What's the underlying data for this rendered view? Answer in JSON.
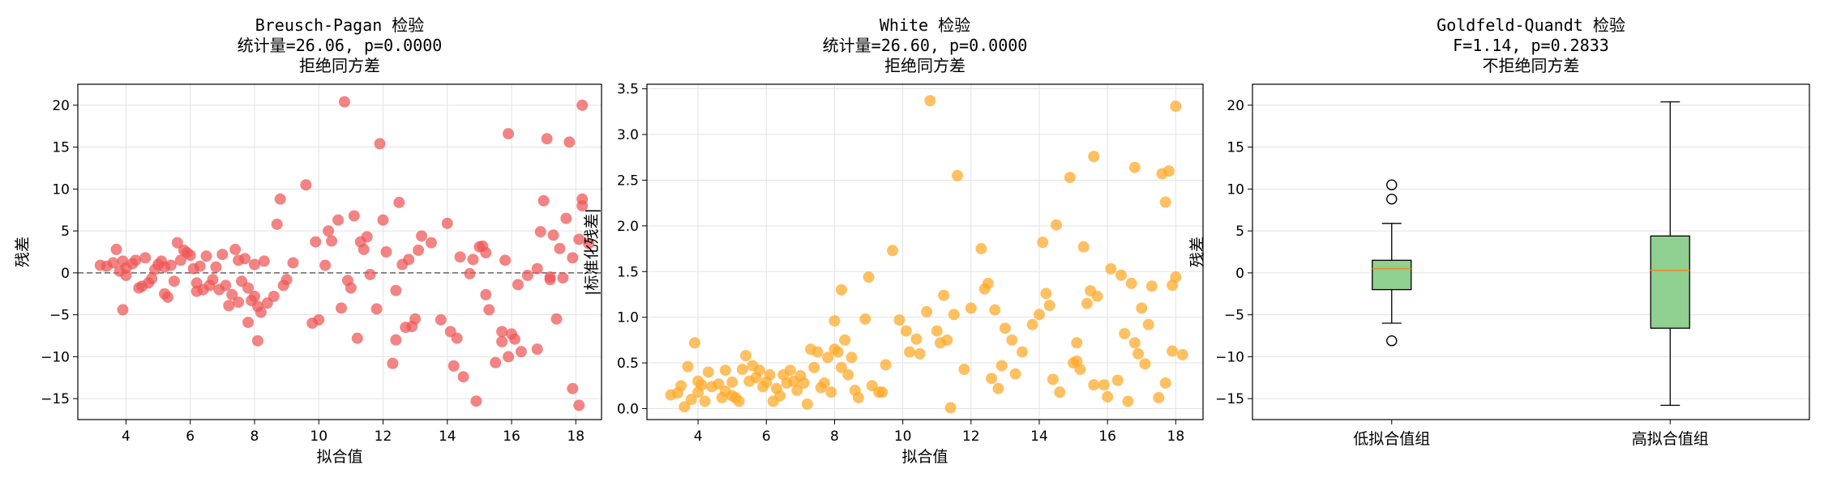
{
  "chart_data": [
    {
      "type": "scatter",
      "title_lines": [
        "Breusch-Pagan 检验",
        "统计量=26.06, p=0.0000",
        "拒绝同方差"
      ],
      "xlabel": "拟合值",
      "ylabel": "残差",
      "xlim": [
        2.5,
        18.8
      ],
      "ylim": [
        -17.5,
        22.5
      ],
      "xticks": [
        4,
        6,
        8,
        10,
        12,
        14,
        16,
        18
      ],
      "yticks": [
        -15,
        -10,
        -5,
        0,
        5,
        10,
        15,
        20
      ],
      "grid": true,
      "reference_line": 0,
      "color": "#ee5555",
      "points": [
        [
          3.2,
          0.9
        ],
        [
          3.4,
          0.8
        ],
        [
          3.6,
          1.2
        ],
        [
          3.7,
          2.8
        ],
        [
          3.8,
          0.2
        ],
        [
          3.9,
          1.4
        ],
        [
          4.0,
          0.6
        ],
        [
          4.0,
          -0.3
        ],
        [
          3.9,
          -4.4
        ],
        [
          4.2,
          1.1
        ],
        [
          4.3,
          1.5
        ],
        [
          4.4,
          -1.8
        ],
        [
          4.5,
          -1.6
        ],
        [
          4.6,
          1.8
        ],
        [
          4.7,
          -1.2
        ],
        [
          4.8,
          -0.7
        ],
        [
          4.9,
          0.4
        ],
        [
          5.0,
          1.0
        ],
        [
          5.1,
          1.4
        ],
        [
          5.2,
          0.7
        ],
        [
          5.2,
          -2.5
        ],
        [
          5.3,
          -2.9
        ],
        [
          5.4,
          0.9
        ],
        [
          5.5,
          -1.0
        ],
        [
          5.6,
          3.6
        ],
        [
          5.7,
          1.5
        ],
        [
          5.8,
          2.7
        ],
        [
          5.9,
          2.4
        ],
        [
          6.0,
          2.1
        ],
        [
          6.1,
          0.5
        ],
        [
          6.2,
          -1.2
        ],
        [
          6.2,
          -2.2
        ],
        [
          6.3,
          0.8
        ],
        [
          6.4,
          -2.0
        ],
        [
          6.5,
          2.0
        ],
        [
          6.6,
          -1.5
        ],
        [
          6.7,
          -0.8
        ],
        [
          6.8,
          0.7
        ],
        [
          6.9,
          -2.0
        ],
        [
          7.0,
          2.2
        ],
        [
          7.1,
          -1.5
        ],
        [
          7.2,
          -3.9
        ],
        [
          7.3,
          -2.6
        ],
        [
          7.4,
          2.8
        ],
        [
          7.5,
          -3.5
        ],
        [
          7.5,
          1.5
        ],
        [
          7.6,
          -1.0
        ],
        [
          7.7,
          1.7
        ],
        [
          7.8,
          -5.9
        ],
        [
          7.8,
          -1.8
        ],
        [
          7.9,
          -3.3
        ],
        [
          8.0,
          -2.8
        ],
        [
          8.0,
          1.0
        ],
        [
          8.1,
          -4.0
        ],
        [
          8.1,
          -8.1
        ],
        [
          8.2,
          -4.7
        ],
        [
          8.3,
          1.4
        ],
        [
          8.4,
          -3.6
        ],
        [
          8.6,
          -2.8
        ],
        [
          8.7,
          5.8
        ],
        [
          8.8,
          8.8
        ],
        [
          8.9,
          -1.5
        ],
        [
          9.0,
          -0.8
        ],
        [
          9.2,
          1.2
        ],
        [
          9.6,
          10.5
        ],
        [
          9.8,
          -6.0
        ],
        [
          9.9,
          3.7
        ],
        [
          10.0,
          -5.6
        ],
        [
          10.2,
          0.9
        ],
        [
          10.3,
          5.0
        ],
        [
          10.4,
          3.8
        ],
        [
          10.6,
          6.3
        ],
        [
          10.7,
          -4.2
        ],
        [
          10.8,
          20.4
        ],
        [
          10.9,
          -0.9
        ],
        [
          11.0,
          -1.8
        ],
        [
          11.1,
          6.8
        ],
        [
          11.2,
          -7.8
        ],
        [
          11.3,
          3.7
        ],
        [
          11.4,
          2.8
        ],
        [
          11.5,
          4.3
        ],
        [
          11.6,
          -0.2
        ],
        [
          11.8,
          -4.3
        ],
        [
          11.9,
          15.4
        ],
        [
          12.0,
          6.3
        ],
        [
          12.1,
          2.5
        ],
        [
          12.3,
          -10.8
        ],
        [
          12.4,
          -2.1
        ],
        [
          12.4,
          -8.0
        ],
        [
          12.5,
          8.4
        ],
        [
          12.6,
          1.0
        ],
        [
          12.7,
          -6.5
        ],
        [
          12.8,
          1.6
        ],
        [
          12.9,
          -6.4
        ],
        [
          13.0,
          -5.5
        ],
        [
          13.1,
          2.7
        ],
        [
          13.2,
          4.4
        ],
        [
          13.5,
          3.6
        ],
        [
          13.8,
          -5.6
        ],
        [
          14.0,
          5.9
        ],
        [
          14.1,
          -7.0
        ],
        [
          14.2,
          -11.1
        ],
        [
          14.3,
          -7.8
        ],
        [
          14.4,
          1.9
        ],
        [
          14.5,
          -12.4
        ],
        [
          14.7,
          -0.1
        ],
        [
          14.9,
          -15.3
        ],
        [
          15.0,
          3.1
        ],
        [
          15.1,
          3.2
        ],
        [
          15.2,
          -2.6
        ],
        [
          15.2,
          2.4
        ],
        [
          15.3,
          -4.4
        ],
        [
          15.5,
          -10.7
        ],
        [
          15.7,
          -7.0
        ],
        [
          15.7,
          -8.2
        ],
        [
          15.8,
          1.5
        ],
        [
          15.9,
          16.6
        ],
        [
          15.9,
          -10.0
        ],
        [
          16.0,
          -7.3
        ],
        [
          16.1,
          -7.9
        ],
        [
          16.2,
          -1.4
        ],
        [
          16.3,
          -9.4
        ],
        [
          16.5,
          -0.3
        ],
        [
          16.8,
          -9.1
        ],
        [
          16.8,
          0.5
        ],
        [
          16.9,
          4.9
        ],
        [
          17.0,
          8.6
        ],
        [
          17.1,
          16.0
        ],
        [
          17.2,
          -0.8
        ],
        [
          17.3,
          4.5
        ],
        [
          17.4,
          -5.5
        ],
        [
          17.5,
          2.9
        ],
        [
          17.6,
          -0.6
        ],
        [
          17.7,
          6.5
        ],
        [
          17.8,
          15.6
        ],
        [
          17.9,
          -13.8
        ],
        [
          17.9,
          1.8
        ],
        [
          18.1,
          4.0
        ],
        [
          18.1,
          -15.8
        ],
        [
          18.2,
          20.0
        ],
        [
          18.2,
          8.8
        ],
        [
          18.2,
          8.0
        ],
        [
          18.4,
          3.5
        ],
        [
          17.2,
          -0.5
        ],
        [
          14.8,
          1.6
        ]
      ]
    },
    {
      "type": "scatter",
      "title_lines": [
        "White 检验",
        "统计量=26.60, p=0.0000",
        "拒绝同方差"
      ],
      "xlabel": "拟合值",
      "ylabel": "|标准化残差|",
      "xlim": [
        2.5,
        18.8
      ],
      "ylim": [
        -0.12,
        3.55
      ],
      "xticks": [
        4,
        6,
        8,
        10,
        12,
        14,
        16,
        18
      ],
      "yticks": [
        0.0,
        0.5,
        1.0,
        1.5,
        2.0,
        2.5,
        3.0,
        3.5
      ],
      "grid": true,
      "color": "#ffa726",
      "points": [
        [
          3.2,
          0.15
        ],
        [
          3.4,
          0.17
        ],
        [
          3.5,
          0.25
        ],
        [
          3.6,
          0.02
        ],
        [
          3.7,
          0.46
        ],
        [
          3.8,
          0.1
        ],
        [
          3.9,
          0.72
        ],
        [
          4.0,
          0.18
        ],
        [
          4.0,
          0.3
        ],
        [
          4.1,
          0.26
        ],
        [
          4.2,
          0.08
        ],
        [
          4.3,
          0.4
        ],
        [
          4.4,
          0.24
        ],
        [
          4.6,
          0.27
        ],
        [
          4.7,
          0.12
        ],
        [
          4.8,
          0.19
        ],
        [
          4.8,
          0.42
        ],
        [
          5.0,
          0.14
        ],
        [
          5.0,
          0.29
        ],
        [
          5.1,
          0.12
        ],
        [
          5.2,
          0.08
        ],
        [
          5.3,
          0.43
        ],
        [
          5.4,
          0.58
        ],
        [
          5.5,
          0.3
        ],
        [
          5.6,
          0.47
        ],
        [
          5.7,
          0.34
        ],
        [
          5.8,
          0.42
        ],
        [
          5.9,
          0.24
        ],
        [
          6.0,
          0.29
        ],
        [
          6.1,
          0.37
        ],
        [
          6.2,
          0.08
        ],
        [
          6.3,
          0.22
        ],
        [
          6.4,
          0.14
        ],
        [
          6.5,
          0.37
        ],
        [
          6.6,
          0.28
        ],
        [
          6.7,
          0.42
        ],
        [
          6.8,
          0.3
        ],
        [
          6.9,
          0.2
        ],
        [
          7.0,
          0.36
        ],
        [
          7.1,
          0.28
        ],
        [
          7.2,
          0.05
        ],
        [
          7.3,
          0.65
        ],
        [
          7.4,
          0.45
        ],
        [
          7.5,
          0.62
        ],
        [
          7.6,
          0.23
        ],
        [
          7.7,
          0.28
        ],
        [
          7.8,
          0.56
        ],
        [
          7.9,
          0.18
        ],
        [
          8.0,
          0.96
        ],
        [
          8.0,
          0.65
        ],
        [
          8.1,
          0.62
        ],
        [
          8.2,
          1.3
        ],
        [
          8.2,
          0.45
        ],
        [
          8.3,
          0.75
        ],
        [
          8.4,
          0.37
        ],
        [
          8.5,
          0.56
        ],
        [
          8.6,
          0.2
        ],
        [
          8.7,
          0.12
        ],
        [
          8.9,
          0.98
        ],
        [
          9.0,
          1.44
        ],
        [
          9.1,
          0.25
        ],
        [
          9.3,
          0.18
        ],
        [
          9.4,
          0.18
        ],
        [
          9.5,
          0.48
        ],
        [
          9.7,
          1.73
        ],
        [
          9.9,
          0.97
        ],
        [
          10.1,
          0.85
        ],
        [
          10.2,
          0.62
        ],
        [
          10.4,
          0.76
        ],
        [
          10.5,
          0.6
        ],
        [
          10.7,
          1.06
        ],
        [
          10.8,
          3.37
        ],
        [
          11.0,
          0.85
        ],
        [
          11.1,
          0.72
        ],
        [
          11.2,
          1.24
        ],
        [
          11.3,
          0.75
        ],
        [
          11.4,
          0.01
        ],
        [
          11.5,
          1.03
        ],
        [
          11.6,
          2.55
        ],
        [
          11.8,
          0.43
        ],
        [
          12.0,
          1.1
        ],
        [
          12.3,
          1.75
        ],
        [
          12.4,
          1.31
        ],
        [
          12.5,
          1.37
        ],
        [
          12.6,
          0.33
        ],
        [
          12.7,
          1.08
        ],
        [
          12.8,
          0.22
        ],
        [
          12.9,
          0.47
        ],
        [
          13.0,
          0.88
        ],
        [
          13.2,
          0.75
        ],
        [
          13.3,
          0.38
        ],
        [
          13.5,
          0.62
        ],
        [
          13.8,
          0.92
        ],
        [
          14.0,
          1.03
        ],
        [
          14.1,
          1.82
        ],
        [
          14.2,
          1.26
        ],
        [
          14.3,
          1.13
        ],
        [
          14.4,
          0.32
        ],
        [
          14.5,
          2.01
        ],
        [
          14.6,
          0.18
        ],
        [
          14.9,
          2.53
        ],
        [
          15.0,
          0.5
        ],
        [
          15.1,
          0.72
        ],
        [
          15.1,
          0.52
        ],
        [
          15.2,
          0.43
        ],
        [
          15.3,
          1.77
        ],
        [
          15.4,
          1.15
        ],
        [
          15.5,
          1.29
        ],
        [
          15.6,
          2.76
        ],
        [
          15.6,
          0.26
        ],
        [
          15.7,
          1.23
        ],
        [
          15.9,
          0.26
        ],
        [
          16.0,
          0.13
        ],
        [
          16.1,
          1.53
        ],
        [
          16.3,
          0.31
        ],
        [
          16.4,
          1.46
        ],
        [
          16.5,
          0.82
        ],
        [
          16.6,
          0.08
        ],
        [
          16.7,
          1.37
        ],
        [
          16.8,
          2.64
        ],
        [
          16.8,
          0.72
        ],
        [
          16.9,
          0.6
        ],
        [
          17.0,
          1.1
        ],
        [
          17.1,
          0.49
        ],
        [
          17.2,
          0.92
        ],
        [
          17.3,
          1.34
        ],
        [
          17.5,
          0.12
        ],
        [
          17.6,
          2.57
        ],
        [
          17.7,
          0.28
        ],
        [
          17.7,
          2.26
        ],
        [
          17.8,
          2.6
        ],
        [
          17.9,
          0.63
        ],
        [
          17.9,
          1.35
        ],
        [
          18.0,
          3.31
        ],
        [
          18.0,
          1.44
        ],
        [
          18.2,
          0.59
        ]
      ]
    },
    {
      "type": "box",
      "title_lines": [
        "Goldfeld-Quandt 检验",
        "F=1.14, p=0.2833",
        "不拒绝同方差"
      ],
      "xlabel": "",
      "ylabel": "残差",
      "ylim": [
        -17.5,
        22.5
      ],
      "yticks": [
        -15,
        -10,
        -5,
        0,
        5,
        10,
        15,
        20
      ],
      "grid": true,
      "box_color": "#90d090",
      "median_color": "#f08a2a",
      "groups": [
        {
          "label": "低拟合值组",
          "whisker_low": -6.0,
          "q1": -2.0,
          "median": 0.5,
          "q3": 1.5,
          "whisker_high": 5.9,
          "outliers": [
            10.5,
            8.8,
            -8.1
          ]
        },
        {
          "label": "高拟合值组",
          "whisker_low": -15.8,
          "q1": -6.6,
          "median": 0.3,
          "q3": 4.4,
          "whisker_high": 20.4,
          "outliers": []
        }
      ]
    }
  ]
}
